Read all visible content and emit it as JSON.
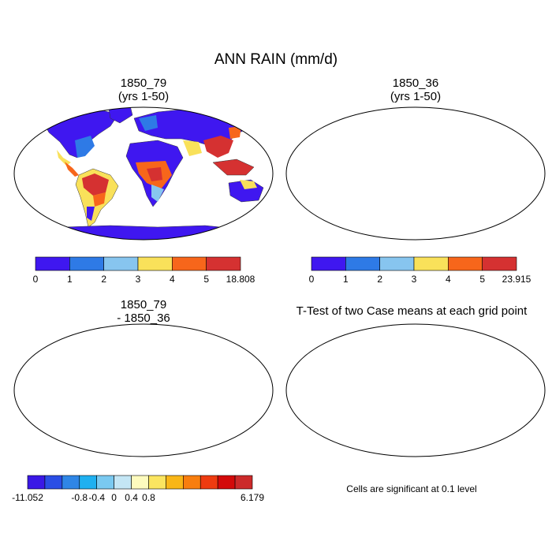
{
  "title": "ANN RAIN (mm/d)",
  "panels": [
    {
      "title_line1": "1850_79",
      "title_line2": "(yrs 1-50)"
    },
    {
      "title_line1": "1850_36",
      "title_line2": "(yrs 1-50)"
    },
    {
      "title_line1": "1850_79",
      "title_line2": "- 1850_36"
    },
    {
      "title_line1": "T-Test of two Case means at each grid point",
      "title_line2": ""
    }
  ],
  "colorbars": [
    {
      "colors": [
        "#3f17f0",
        "#2e7ae6",
        "#87c5ef",
        "#f9e15a",
        "#f7661b",
        "#d53131"
      ],
      "tick_labels": [
        "0",
        "1",
        "2",
        "3",
        "4",
        "5",
        "18.808"
      ]
    },
    {
      "colors": [
        "#3f17f0",
        "#2e7ae6",
        "#87c5ef",
        "#f9e15a",
        "#f7661b",
        "#d53131"
      ],
      "tick_labels": [
        "0",
        "1",
        "2",
        "3",
        "4",
        "5",
        "23.915"
      ]
    },
    {
      "colors": [
        "#3a18e6",
        "#2a4ee5",
        "#2f86e6",
        "#1fb0f0",
        "#7ac9f0",
        "#c4e6f5",
        "#fdfbbe",
        "#fbe560",
        "#f9b617",
        "#f87e0e",
        "#ee3b10",
        "#d30a0a",
        "#cc2a2a"
      ],
      "tick_labels": [
        "-11.052",
        "-0.8",
        "-0.4",
        "0",
        "0.4",
        "0.8",
        "6.179"
      ]
    }
  ],
  "significance_note": "Cells are significant at 0.1 level",
  "significance_color": "#ff0000"
}
